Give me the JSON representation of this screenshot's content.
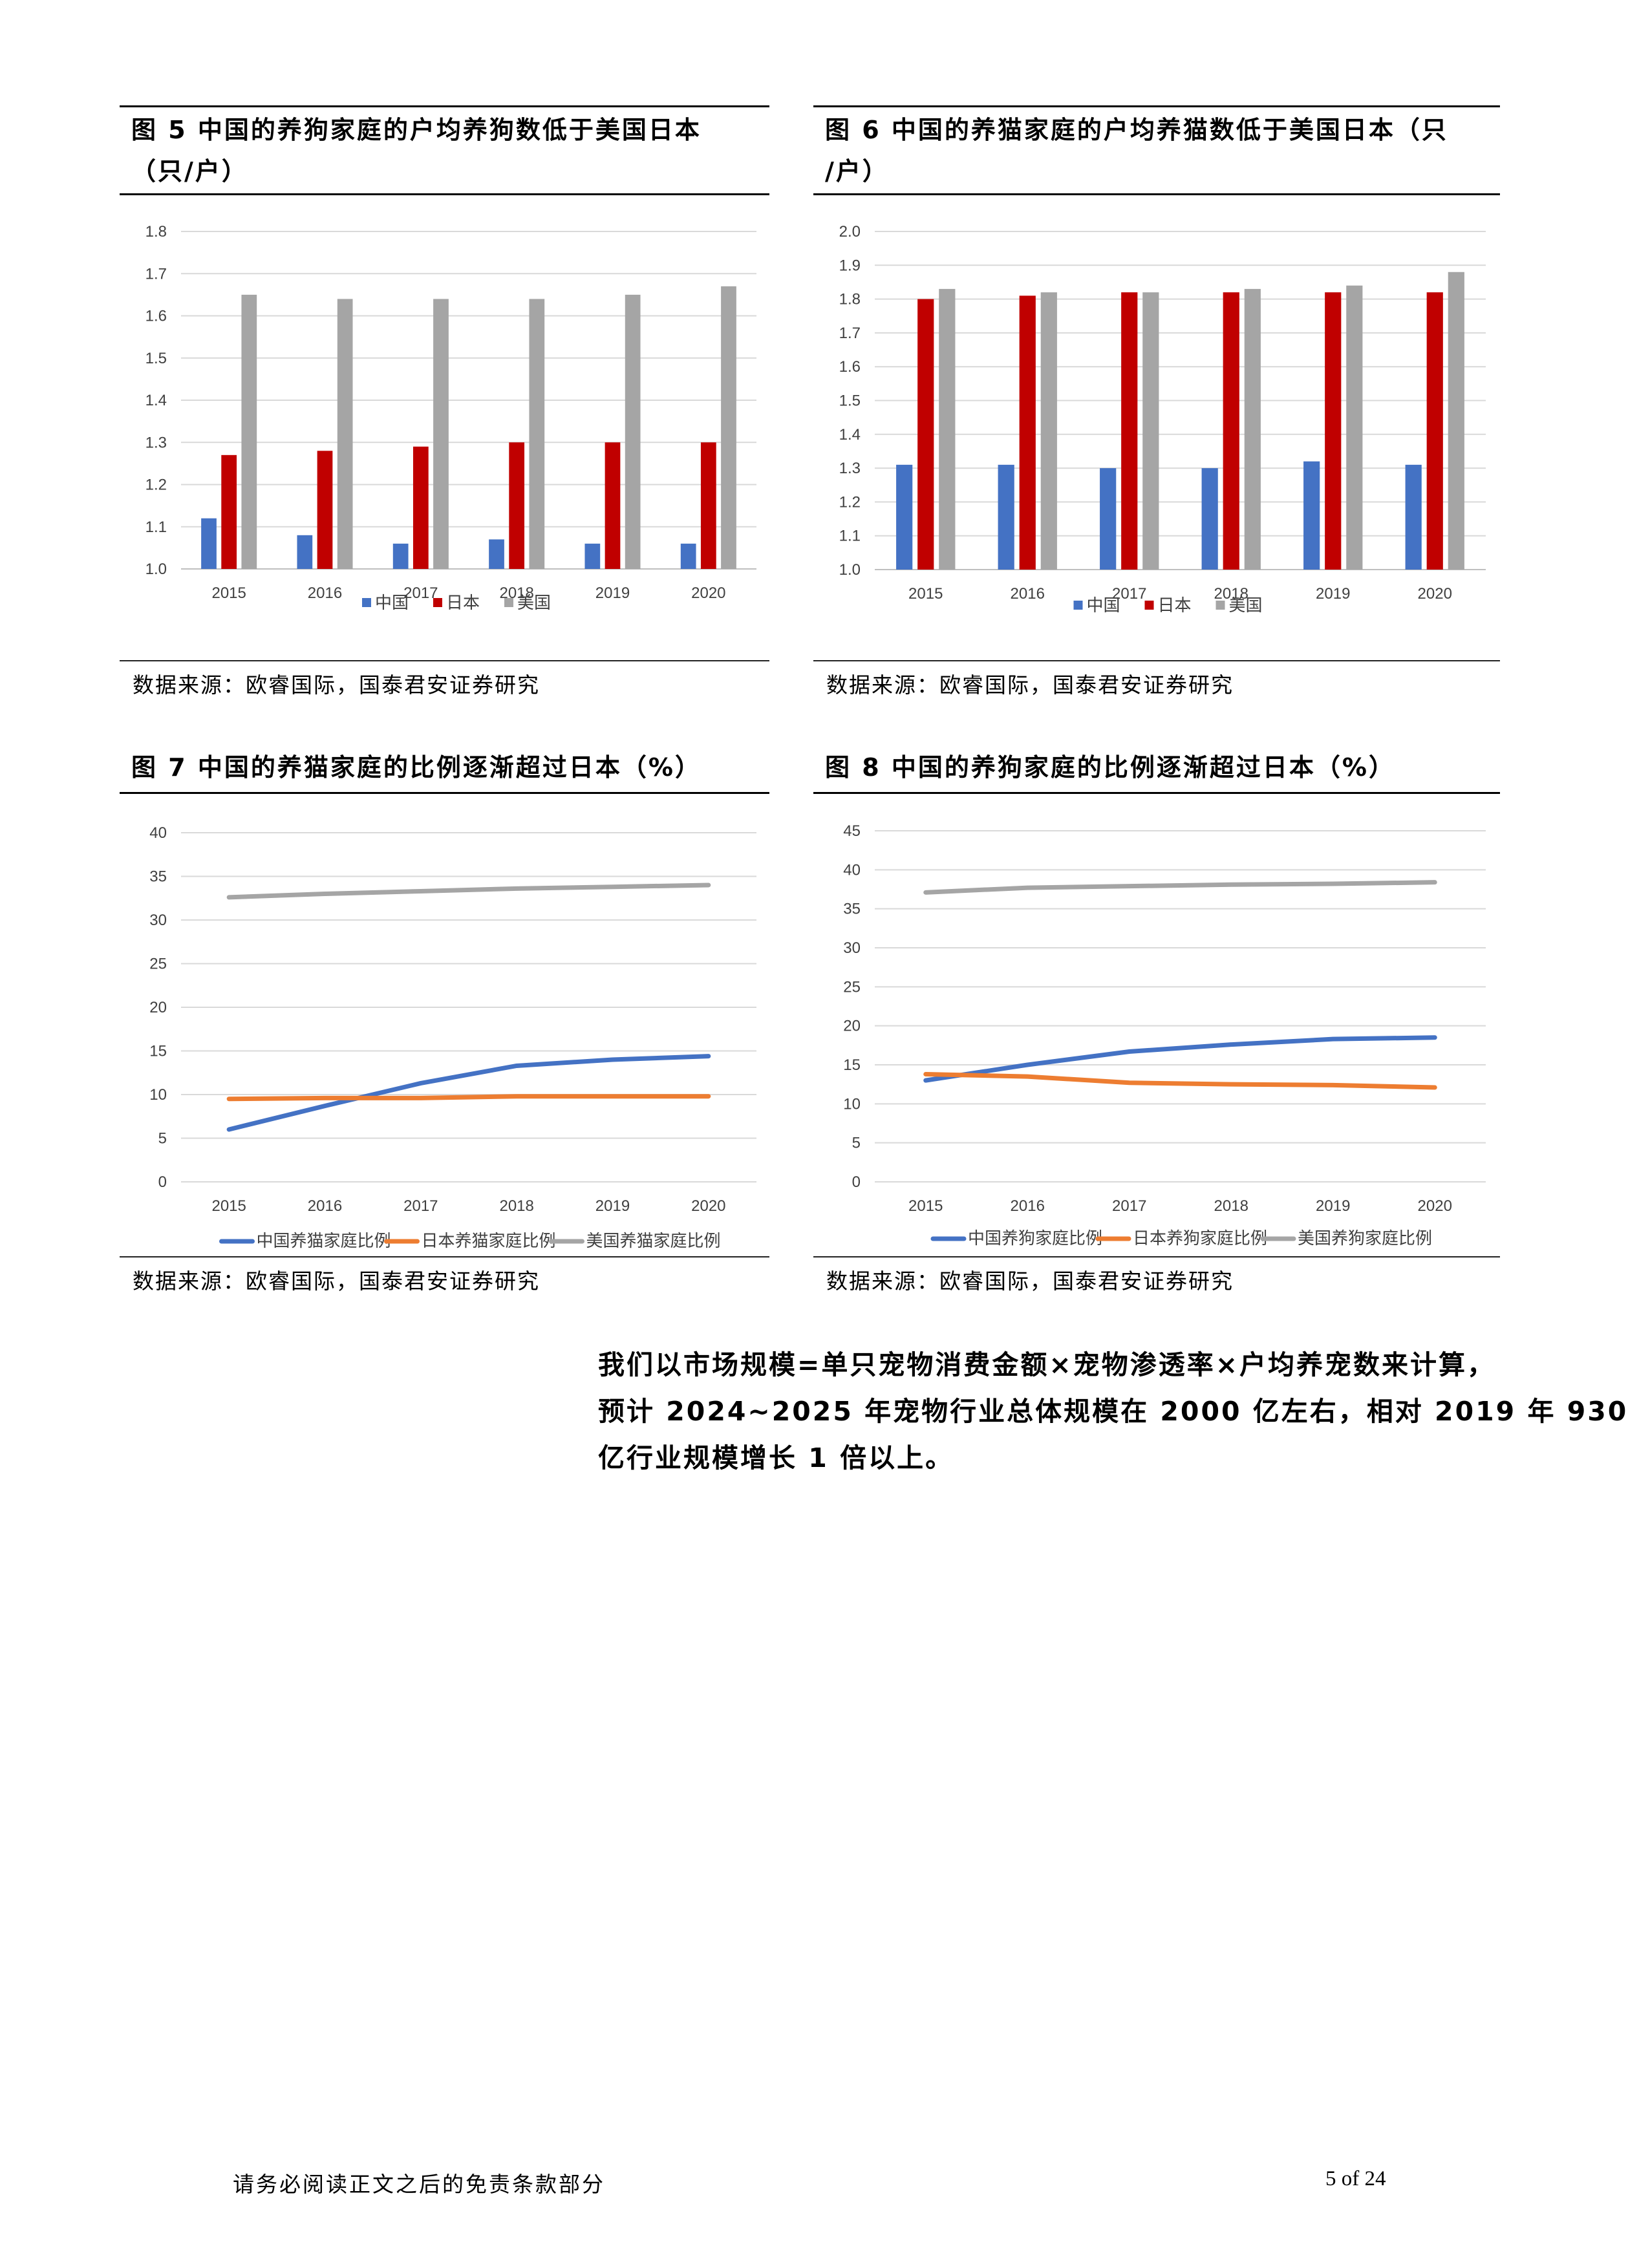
{
  "colors": {
    "china": "#4472C4",
    "japan": "#C00000",
    "usa": "#A5A5A5",
    "line_japan": "#ED7D31",
    "grid": "#D9D9D9"
  },
  "figures": {
    "fig5": {
      "title_line1": "图 5 中国的养狗家庭的户均养狗数低于美国日本",
      "title_line2": "（只/户）",
      "source": "数据来源：欧睿国际，国泰君安证券研究"
    },
    "fig6": {
      "title_line1": "图 6 中国的养猫家庭的户均养猫数低于美国日本（只",
      "title_line2": "/户）",
      "source": "数据来源：欧睿国际，国泰君安证券研究"
    },
    "fig7": {
      "title_line1": "图 7 中国的养猫家庭的比例逐渐超过日本（%）",
      "source": "数据来源：欧睿国际，国泰君安证券研究"
    },
    "fig8": {
      "title_line1": "图 8 中国的养狗家庭的比例逐渐超过日本（%）",
      "source": "数据来源：欧睿国际，国泰君安证券研究"
    }
  },
  "chart_data": [
    {
      "id": "fig5",
      "type": "bar",
      "categories": [
        "2015",
        "2016",
        "2017",
        "2018",
        "2019",
        "2020"
      ],
      "series": [
        {
          "name": "中国",
          "color": "#4472C4",
          "values": [
            1.12,
            1.08,
            1.06,
            1.07,
            1.06,
            1.06
          ]
        },
        {
          "name": "日本",
          "color": "#C00000",
          "values": [
            1.27,
            1.28,
            1.29,
            1.3,
            1.3,
            1.3
          ]
        },
        {
          "name": "美国",
          "color": "#A5A5A5",
          "values": [
            1.65,
            1.64,
            1.64,
            1.64,
            1.65,
            1.67
          ]
        }
      ],
      "ylim": [
        1.0,
        1.8
      ],
      "yticks": [
        "1.0",
        "1.1",
        "1.2",
        "1.3",
        "1.4",
        "1.5",
        "1.6",
        "1.7",
        "1.8"
      ],
      "grid": true,
      "legend": "bottom"
    },
    {
      "id": "fig6",
      "type": "bar",
      "categories": [
        "2015",
        "2016",
        "2017",
        "2018",
        "2019",
        "2020"
      ],
      "series": [
        {
          "name": "中国",
          "color": "#4472C4",
          "values": [
            1.31,
            1.31,
            1.3,
            1.3,
            1.32,
            1.31
          ]
        },
        {
          "name": "日本",
          "color": "#C00000",
          "values": [
            1.8,
            1.81,
            1.82,
            1.82,
            1.82,
            1.82
          ]
        },
        {
          "name": "美国",
          "color": "#A5A5A5",
          "values": [
            1.83,
            1.82,
            1.82,
            1.83,
            1.84,
            1.88
          ]
        }
      ],
      "ylim": [
        1.0,
        2.0
      ],
      "yticks": [
        "1.0",
        "1.1",
        "1.2",
        "1.3",
        "1.4",
        "1.5",
        "1.6",
        "1.7",
        "1.8",
        "1.9",
        "2.0"
      ],
      "grid": true,
      "legend": "bottom"
    },
    {
      "id": "fig7",
      "type": "line",
      "categories": [
        "2015",
        "2016",
        "2017",
        "2018",
        "2019",
        "2020"
      ],
      "series": [
        {
          "name": "中国养猫家庭比例",
          "color": "#4472C4",
          "values": [
            6.0,
            8.7,
            11.3,
            13.3,
            14.0,
            14.4
          ]
        },
        {
          "name": "日本养猫家庭比例",
          "color": "#ED7D31",
          "values": [
            9.5,
            9.6,
            9.6,
            9.8,
            9.8,
            9.8
          ]
        },
        {
          "name": "美国养猫家庭比例",
          "color": "#A5A5A5",
          "values": [
            32.6,
            33.0,
            33.3,
            33.6,
            33.8,
            34.0
          ]
        }
      ],
      "ylim": [
        0,
        40
      ],
      "yticks": [
        "0",
        "5",
        "10",
        "15",
        "20",
        "25",
        "30",
        "35",
        "40"
      ],
      "grid": true,
      "legend": "bottom"
    },
    {
      "id": "fig8",
      "type": "line",
      "categories": [
        "2015",
        "2016",
        "2017",
        "2018",
        "2019",
        "2020"
      ],
      "series": [
        {
          "name": "中国养狗家庭比例",
          "color": "#4472C4",
          "values": [
            13.0,
            15.0,
            16.7,
            17.6,
            18.3,
            18.5
          ]
        },
        {
          "name": "日本养狗家庭比例",
          "color": "#ED7D31",
          "values": [
            13.8,
            13.5,
            12.7,
            12.5,
            12.4,
            12.1
          ]
        },
        {
          "name": "美国养狗家庭比例",
          "color": "#A5A5A5",
          "values": [
            37.1,
            37.7,
            37.9,
            38.1,
            38.2,
            38.4
          ]
        }
      ],
      "ylim": [
        0,
        45
      ],
      "yticks": [
        "0",
        "5",
        "10",
        "15",
        "20",
        "25",
        "30",
        "35",
        "40",
        "45"
      ],
      "grid": true,
      "legend": "bottom"
    }
  ],
  "body": {
    "line1": "我们以市场规模=单只宠物消费金额×宠物渗透率×户均养宠数来计算，",
    "line2": "预计 2024~2025 年宠物行业总体规模在 2000 亿左右，相对 2019 年 930",
    "line3": "亿行业规模增长 1 倍以上。"
  },
  "footer": {
    "disclaimer": "请务必阅读正文之后的免责条款部分",
    "page": "5 of 24"
  }
}
